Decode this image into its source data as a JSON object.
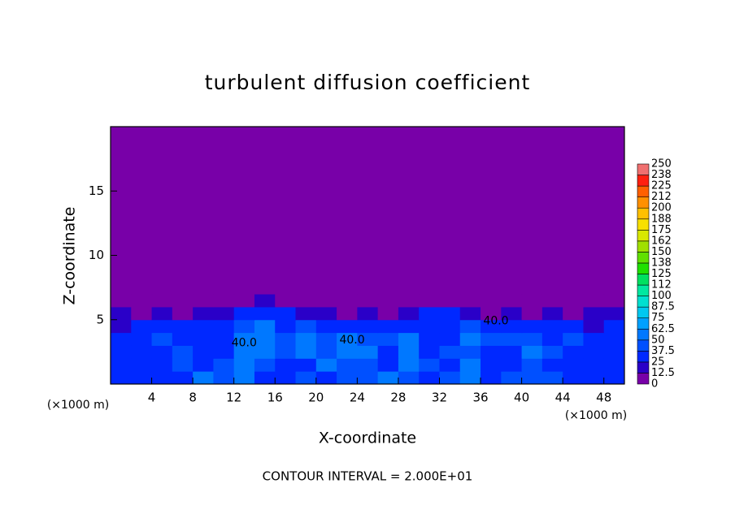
{
  "chart_data": {
    "type": "heatmap",
    "title": "turbulent diffusion coefficient",
    "xlabel": "X-coordinate",
    "ylabel": "Z-coordinate",
    "x_unit_label": "(×1000 m)",
    "y_unit_label": "(×1000 m)",
    "footnote": "CONTOUR INTERVAL = 2.000E+01",
    "xlim": [
      0,
      50
    ],
    "ylim": [
      0,
      20
    ],
    "xticks": [
      4,
      8,
      12,
      16,
      20,
      24,
      28,
      32,
      36,
      40,
      44,
      48
    ],
    "yticks": [
      5,
      10,
      15
    ],
    "x_bins": [
      0,
      2,
      4,
      6,
      8,
      10,
      12,
      14,
      16,
      18,
      20,
      22,
      24,
      26,
      28,
      30,
      32,
      34,
      36,
      38,
      40,
      42,
      44,
      46,
      48,
      50
    ],
    "z_bins": [
      0,
      1,
      2,
      3,
      4,
      5,
      6,
      7,
      20
    ],
    "values": [
      [
        30,
        35,
        30,
        35,
        55,
        40,
        60,
        35,
        30,
        40,
        35,
        45,
        40,
        60,
        45,
        35,
        40,
        55,
        35,
        40,
        45,
        40,
        30,
        35,
        30
      ],
      [
        30,
        30,
        25,
        40,
        35,
        40,
        60,
        45,
        30,
        35,
        50,
        40,
        45,
        35,
        60,
        40,
        35,
        50,
        30,
        25,
        45,
        35,
        30,
        35,
        30
      ],
      [
        25,
        30,
        35,
        45,
        30,
        35,
        55,
        50,
        45,
        60,
        40,
        55,
        50,
        30,
        55,
        35,
        40,
        45,
        30,
        35,
        50,
        40,
        35,
        30,
        25
      ],
      [
        30,
        25,
        40,
        35,
        30,
        35,
        60,
        55,
        40,
        50,
        45,
        55,
        45,
        40,
        50,
        35,
        30,
        55,
        40,
        45,
        40,
        35,
        45,
        30,
        35
      ],
      [
        20,
        25,
        30,
        25,
        30,
        30,
        45,
        55,
        30,
        40,
        30,
        35,
        30,
        25,
        35,
        30,
        35,
        40,
        30,
        35,
        30,
        25,
        30,
        20,
        25
      ],
      [
        15,
        10,
        15,
        10,
        15,
        20,
        25,
        35,
        25,
        20,
        15,
        10,
        15,
        10,
        20,
        25,
        30,
        20,
        10,
        15,
        10,
        15,
        10,
        15,
        20
      ],
      [
        5,
        5,
        0,
        5,
        0,
        5,
        10,
        15,
        5,
        0,
        0,
        0,
        0,
        0,
        0,
        5,
        10,
        5,
        0,
        0,
        0,
        0,
        0,
        0,
        5
      ],
      [
        0,
        0,
        0,
        0,
        0,
        0,
        0,
        0,
        0,
        0,
        0,
        0,
        0,
        0,
        0,
        0,
        0,
        0,
        0,
        0,
        0,
        0,
        0,
        0,
        0
      ]
    ],
    "annotations": [
      {
        "text": "40.0",
        "x": 13,
        "z": 3.2
      },
      {
        "text": "40.0",
        "x": 23.5,
        "z": 3.4
      },
      {
        "text": "40.0",
        "x": 37.5,
        "z": 4.9
      }
    ],
    "colorbar": {
      "ticks": [
        0,
        12.5,
        25,
        37.5,
        50,
        62.5,
        75,
        87.5,
        100,
        {
          "value": 112.5,
          "label": "112"
        },
        125,
        {
          "value": 137.5,
          "label": "138"
        },
        150,
        {
          "value": 162.5,
          "label": "162"
        },
        175,
        {
          "value": 187.5,
          "label": "188"
        },
        200,
        {
          "value": 212.5,
          "label": "212"
        },
        225,
        {
          "value": 237.5,
          "label": "238"
        },
        250
      ],
      "colors": [
        "#7800a8",
        "#2a00c8",
        "#0028ff",
        "#0050ff",
        "#0078ff",
        "#00a0ff",
        "#00c8f0",
        "#00e0d0",
        "#00e8a0",
        "#00e060",
        "#20e000",
        "#60e000",
        "#a0e000",
        "#d8e800",
        "#f8e000",
        "#ffc000",
        "#ff9000",
        "#ff6000",
        "#ff2010",
        "#f07070"
      ]
    }
  }
}
